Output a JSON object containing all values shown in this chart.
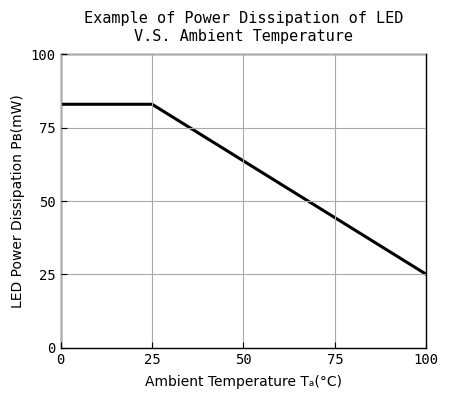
{
  "title_line1": "Example of Power Dissipation of LED",
  "title_line2": "V.S. Ambient Temperature",
  "xlabel": "Ambient Temperature Tₐ(°C)",
  "ylabel": "LED Power Dissipation Pʙ(mW)",
  "xlim": [
    0,
    100
  ],
  "ylim": [
    0,
    100
  ],
  "xticks": [
    0,
    25,
    50,
    75,
    100
  ],
  "yticks": [
    0,
    25,
    50,
    75,
    100
  ],
  "line_x": [
    0,
    25,
    100
  ],
  "line_y": [
    83,
    83,
    25
  ],
  "line_color": "#000000",
  "line_width": 2.2,
  "grid_color": "#aaaaaa",
  "bg_color": "#ffffff",
  "title_fontsize": 11,
  "label_fontsize": 10,
  "tick_fontsize": 10
}
